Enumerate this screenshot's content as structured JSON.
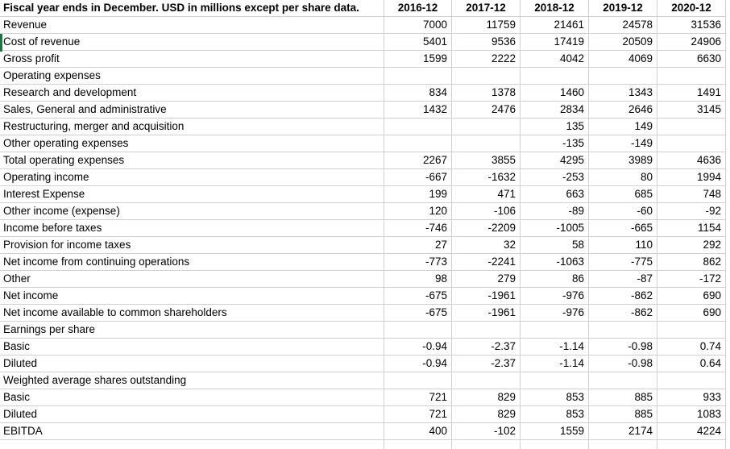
{
  "sheet": {
    "header": {
      "title": "Fiscal year ends in December. USD in millions except per share data.",
      "years": [
        "2016-12",
        "2017-12",
        "2018-12",
        "2019-12",
        "2020-12"
      ]
    },
    "rows": [
      {
        "label": "Revenue",
        "values": [
          "7000",
          "11759",
          "21461",
          "24578",
          "31536"
        ]
      },
      {
        "label": "Cost of revenue",
        "values": [
          "5401",
          "9536",
          "17419",
          "20509",
          "24906"
        ],
        "selected": true
      },
      {
        "label": "Gross profit",
        "values": [
          "1599",
          "2222",
          "4042",
          "4069",
          "6630"
        ]
      },
      {
        "label": "Operating expenses",
        "values": [
          "",
          "",
          "",
          "",
          ""
        ]
      },
      {
        "label": "Research and development",
        "values": [
          "834",
          "1378",
          "1460",
          "1343",
          "1491"
        ]
      },
      {
        "label": "Sales, General and administrative",
        "values": [
          "1432",
          "2476",
          "2834",
          "2646",
          "3145"
        ]
      },
      {
        "label": "Restructuring, merger and acquisition",
        "values": [
          "",
          "",
          "135",
          "149",
          ""
        ]
      },
      {
        "label": "Other operating expenses",
        "values": [
          "",
          "",
          "-135",
          "-149",
          ""
        ]
      },
      {
        "label": "Total operating expenses",
        "values": [
          "2267",
          "3855",
          "4295",
          "3989",
          "4636"
        ]
      },
      {
        "label": "Operating income",
        "values": [
          "-667",
          "-1632",
          "-253",
          "80",
          "1994"
        ]
      },
      {
        "label": "Interest Expense",
        "values": [
          "199",
          "471",
          "663",
          "685",
          "748"
        ]
      },
      {
        "label": "Other income (expense)",
        "values": [
          "120",
          "-106",
          "-89",
          "-60",
          "-92"
        ]
      },
      {
        "label": "Income before taxes",
        "values": [
          "-746",
          "-2209",
          "-1005",
          "-665",
          "1154"
        ]
      },
      {
        "label": "Provision for income taxes",
        "values": [
          "27",
          "32",
          "58",
          "110",
          "292"
        ]
      },
      {
        "label": "Net income from continuing operations",
        "values": [
          "-773",
          "-2241",
          "-1063",
          "-775",
          "862"
        ]
      },
      {
        "label": "Other",
        "values": [
          "98",
          "279",
          "86",
          "-87",
          "-172"
        ]
      },
      {
        "label": "Net income",
        "values": [
          "-675",
          "-1961",
          "-976",
          "-862",
          "690"
        ]
      },
      {
        "label": "Net income available to common shareholders",
        "values": [
          "-675",
          "-1961",
          "-976",
          "-862",
          "690"
        ]
      },
      {
        "label": "Earnings per share",
        "values": [
          "",
          "",
          "",
          "",
          ""
        ]
      },
      {
        "label": "Basic",
        "values": [
          "-0.94",
          "-2.37",
          "-1.14",
          "-0.98",
          "0.74"
        ]
      },
      {
        "label": "Diluted",
        "values": [
          "-0.94",
          "-2.37",
          "-1.14",
          "-0.98",
          "0.64"
        ]
      },
      {
        "label": "Weighted average shares outstanding",
        "values": [
          "",
          "",
          "",
          "",
          ""
        ]
      },
      {
        "label": "Basic",
        "values": [
          "721",
          "829",
          "853",
          "885",
          "933"
        ]
      },
      {
        "label": "Diluted",
        "values": [
          "721",
          "829",
          "853",
          "885",
          "1083"
        ]
      },
      {
        "label": "EBITDA",
        "values": [
          "400",
          "-102",
          "1559",
          "2174",
          "4224"
        ]
      }
    ],
    "colors": {
      "gridline": "#d0d0d0",
      "selection_green": "#217346",
      "text": "#000000",
      "background": "#ffffff"
    }
  }
}
